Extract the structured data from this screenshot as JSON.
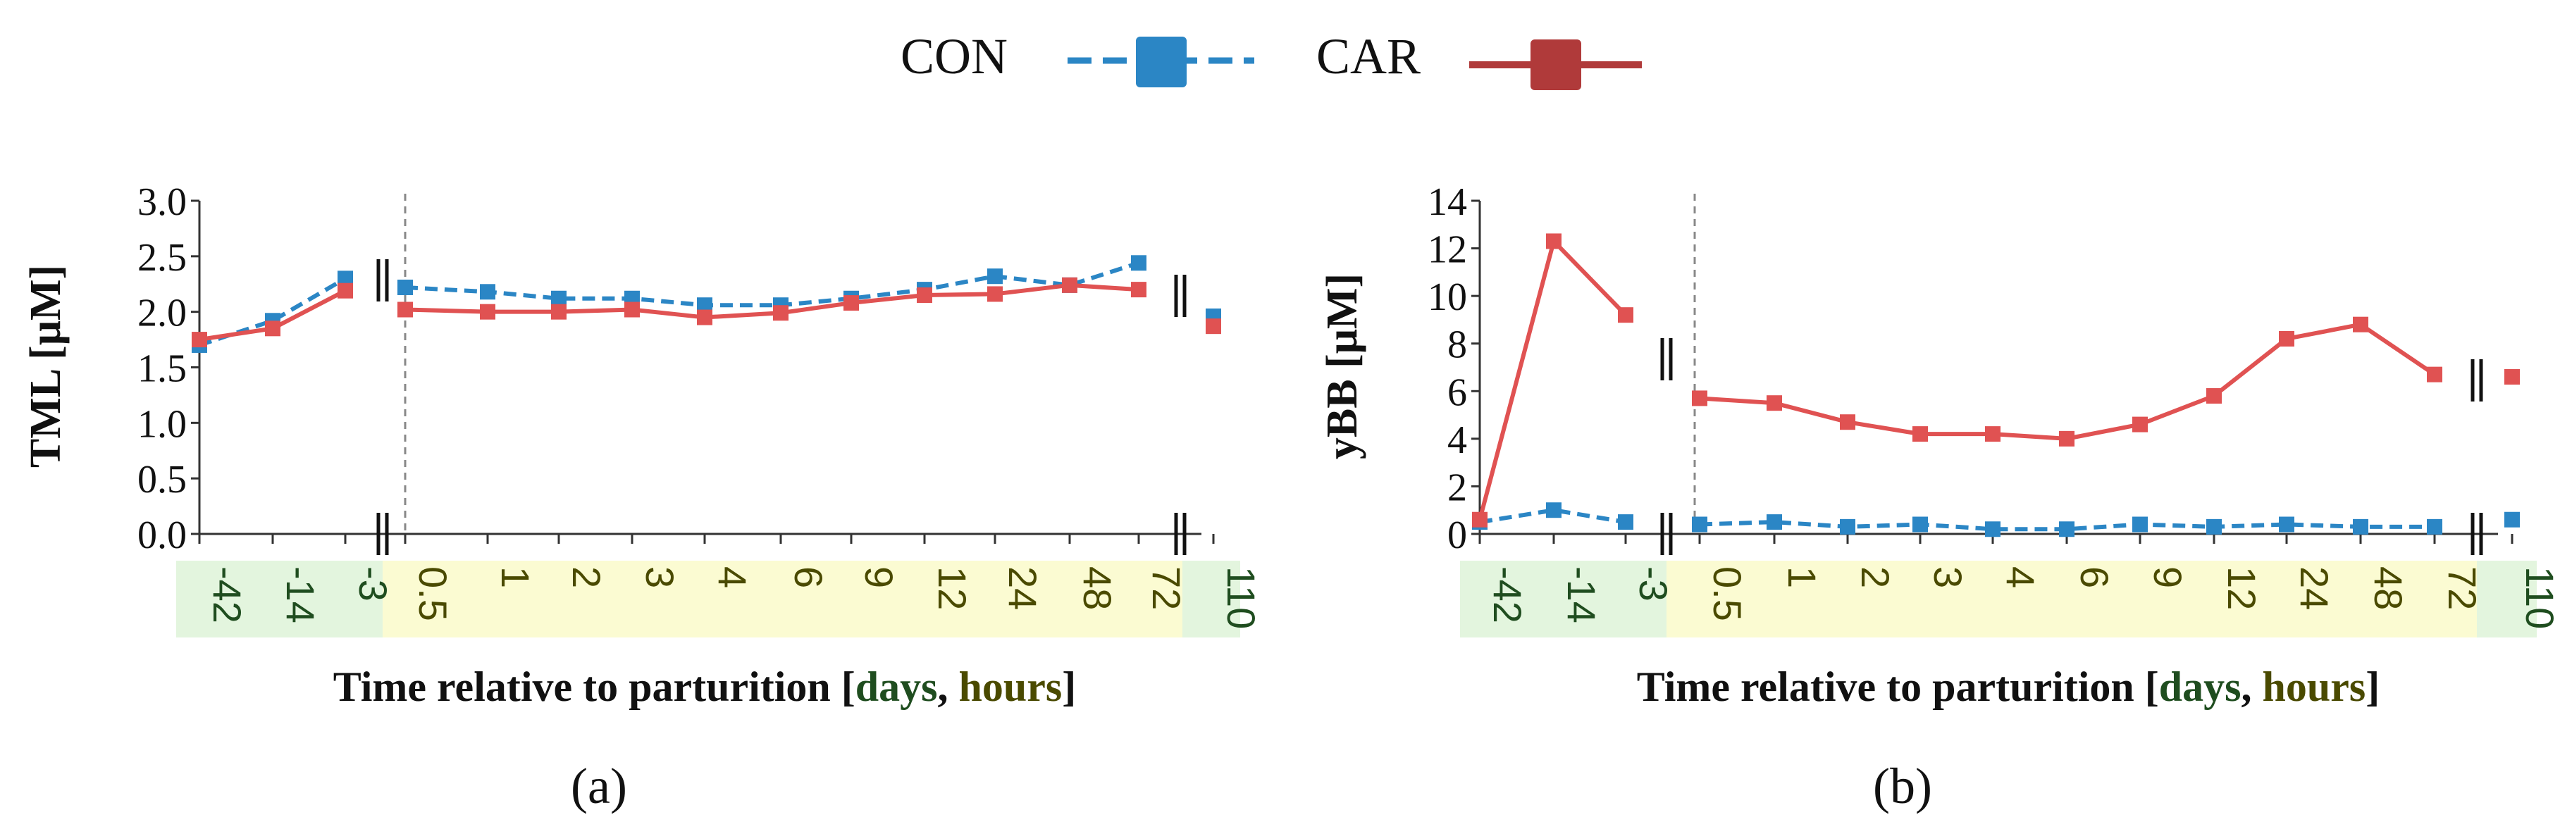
{
  "legend": {
    "entries": [
      {
        "label": "CON",
        "color": "#2b86c5",
        "style": "dashed"
      },
      {
        "label": "CAR",
        "color": "#b03a3a",
        "style": "solid"
      }
    ]
  },
  "colors": {
    "con_marker": "#2b86c5",
    "car_line": "#e05252",
    "car_legend": "#b03a3a",
    "days_band": "#e3f5de",
    "hours_band": "#fbfbd2",
    "days_text": "#1f4d1f",
    "hours_text": "#4a4a00"
  },
  "xlabel": {
    "prefix": "Time relative to parturition [",
    "days": "days",
    "comma": ", ",
    "hours": "hours",
    "suffix": "]"
  },
  "chart_data": [
    {
      "type": "line",
      "panel_label": "(a)",
      "ylabel": "TML  [μM]",
      "ylim": [
        0,
        3
      ],
      "yticks": [
        "0.0",
        "0.5",
        "1.0",
        "1.5",
        "2.0",
        "2.5",
        "3.0"
      ],
      "categories": [
        "-42",
        "-14",
        "-3",
        "0.5",
        "1",
        "2",
        "3",
        "4",
        "6",
        "9",
        "12",
        "24",
        "48",
        "72",
        "110"
      ],
      "category_units": [
        "days",
        "days",
        "days",
        "hours",
        "hours",
        "hours",
        "hours",
        "hours",
        "hours",
        "hours",
        "hours",
        "hours",
        "hours",
        "hours",
        "days"
      ],
      "series": [
        {
          "name": "CON",
          "values": [
            1.7,
            1.92,
            2.3,
            2.22,
            2.18,
            2.12,
            2.12,
            2.06,
            2.06,
            2.12,
            2.2,
            2.32,
            2.24,
            2.44,
            1.96
          ]
        },
        {
          "name": "CAR",
          "values": [
            1.75,
            1.85,
            2.19,
            2.02,
            2.0,
            2.0,
            2.02,
            1.95,
            1.99,
            2.08,
            2.15,
            2.16,
            2.24,
            2.2,
            1.87
          ]
        }
      ]
    },
    {
      "type": "line",
      "panel_label": "(b)",
      "ylabel": "yBB [μM]",
      "ylim": [
        0,
        14
      ],
      "yticks": [
        "0",
        "2",
        "4",
        "6",
        "8",
        "10",
        "12",
        "14"
      ],
      "categories": [
        "-42",
        "-14",
        "-3",
        "0.5",
        "1",
        "2",
        "3",
        "4",
        "6",
        "9",
        "12",
        "24",
        "48",
        "72",
        "110"
      ],
      "category_units": [
        "days",
        "days",
        "days",
        "hours",
        "hours",
        "hours",
        "hours",
        "hours",
        "hours",
        "hours",
        "hours",
        "hours",
        "hours",
        "hours",
        "days"
      ],
      "series": [
        {
          "name": "CON",
          "values": [
            0.5,
            1.0,
            0.5,
            0.4,
            0.5,
            0.3,
            0.4,
            0.2,
            0.2,
            0.4,
            0.3,
            0.4,
            0.3,
            0.3,
            0.6
          ]
        },
        {
          "name": "CAR",
          "values": [
            0.6,
            12.3,
            9.2,
            5.7,
            5.5,
            4.7,
            4.2,
            4.2,
            4.0,
            4.6,
            5.8,
            8.2,
            8.8,
            6.7,
            6.6
          ]
        }
      ]
    }
  ]
}
